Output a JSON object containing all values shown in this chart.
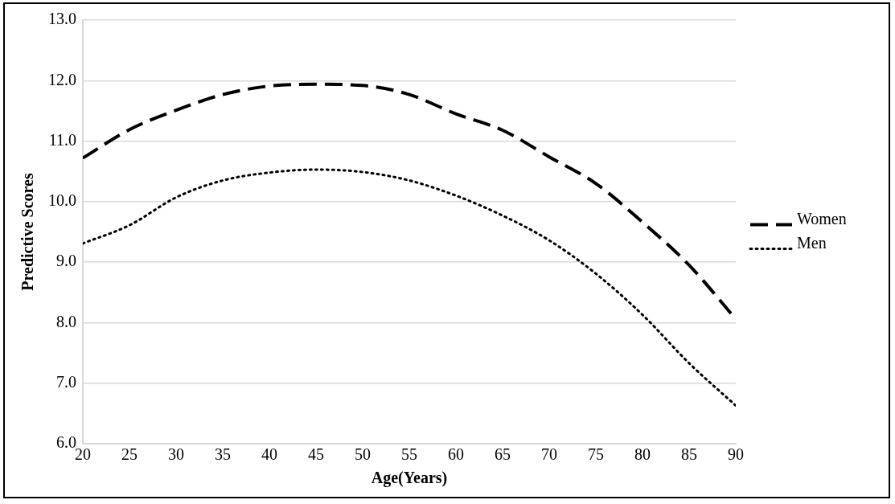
{
  "chart_data": {
    "type": "line",
    "xlabel": "Age(Years)",
    "ylabel": "Predictive Scores",
    "x": [
      20,
      25,
      30,
      35,
      40,
      45,
      50,
      55,
      60,
      65,
      70,
      75,
      80,
      85,
      90
    ],
    "series": [
      {
        "name": "Women",
        "color": "#000000",
        "line_style": "dashed",
        "values": [
          10.72,
          11.19,
          11.51,
          11.77,
          11.91,
          11.94,
          11.92,
          11.77,
          11.45,
          11.18,
          10.74,
          10.3,
          9.66,
          8.95,
          8.06
        ]
      },
      {
        "name": "Men",
        "color": "#000000",
        "line_style": "dotted",
        "values": [
          9.31,
          9.61,
          10.07,
          10.35,
          10.48,
          10.53,
          10.49,
          10.35,
          10.1,
          9.77,
          9.36,
          8.81,
          8.13,
          7.33,
          6.63
        ]
      }
    ],
    "xlim": [
      20,
      90
    ],
    "xticks": [
      20,
      25,
      30,
      35,
      40,
      45,
      50,
      55,
      60,
      65,
      70,
      75,
      80,
      85,
      90
    ],
    "ylim": [
      6,
      13
    ],
    "yticks": [
      {
        "value": 6,
        "label": "6.0"
      },
      {
        "value": 7,
        "label": "7.0"
      },
      {
        "value": 8,
        "label": "8.0"
      },
      {
        "value": 9,
        "label": "9.0"
      },
      {
        "value": 10,
        "label": "10.0"
      },
      {
        "value": 11,
        "label": "11.0"
      },
      {
        "value": 12,
        "label": "12.0"
      },
      {
        "value": 13,
        "label": "13.0"
      }
    ],
    "grid": "y",
    "legend": "right",
    "marker": "none"
  }
}
